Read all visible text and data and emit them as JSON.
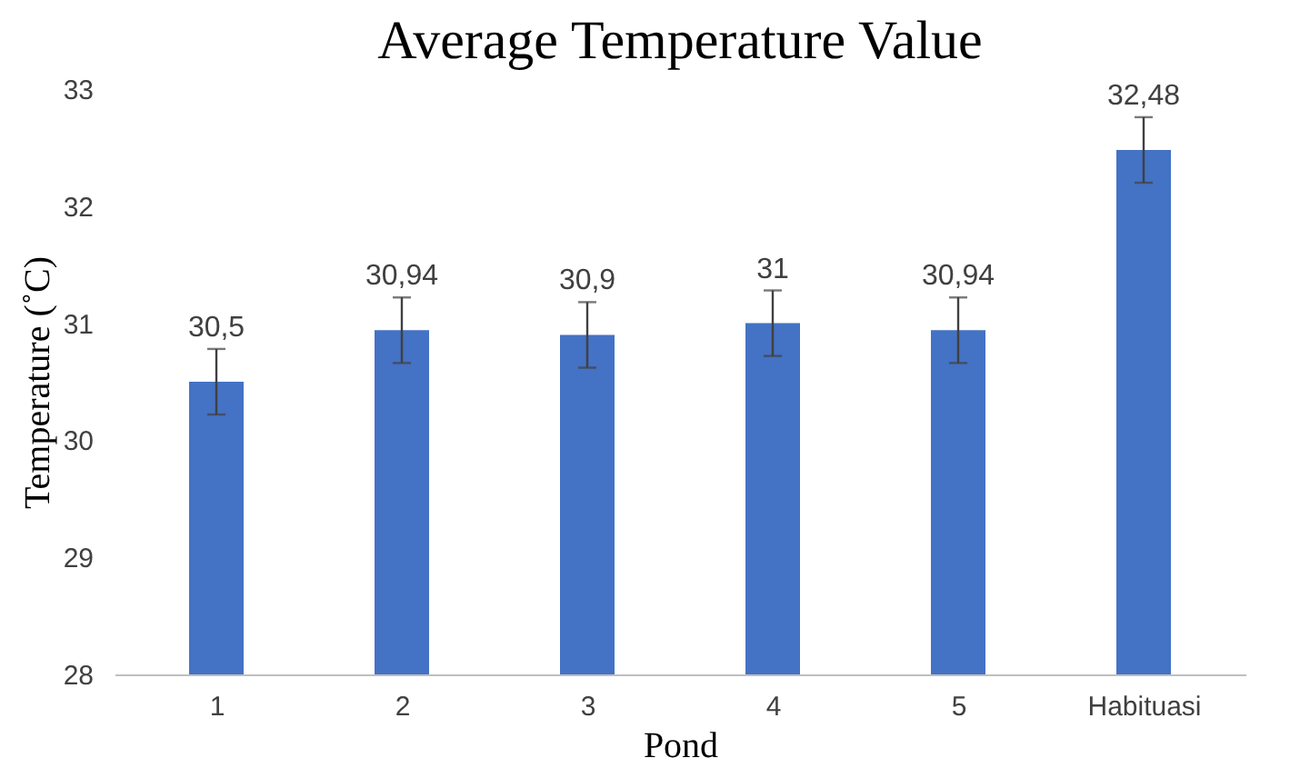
{
  "chart_data": {
    "type": "bar",
    "title": "Average Temperature Value",
    "xlabel": "Pond",
    "ylabel": "Temperature (˚C)",
    "categories": [
      "1",
      "2",
      "3",
      "4",
      "5",
      "Habituasi"
    ],
    "values": [
      30.5,
      30.94,
      30.9,
      31,
      30.94,
      32.48
    ],
    "value_labels": [
      "30,5",
      "30,94",
      "30,9",
      "31",
      "30,94",
      "32,48"
    ],
    "errors": [
      0.28,
      0.28,
      0.28,
      0.28,
      0.28,
      0.28
    ],
    "color": "#4472c4",
    "ylim": [
      28,
      33
    ],
    "yticks": [
      28,
      29,
      30,
      31,
      32,
      33
    ],
    "grid": false
  }
}
